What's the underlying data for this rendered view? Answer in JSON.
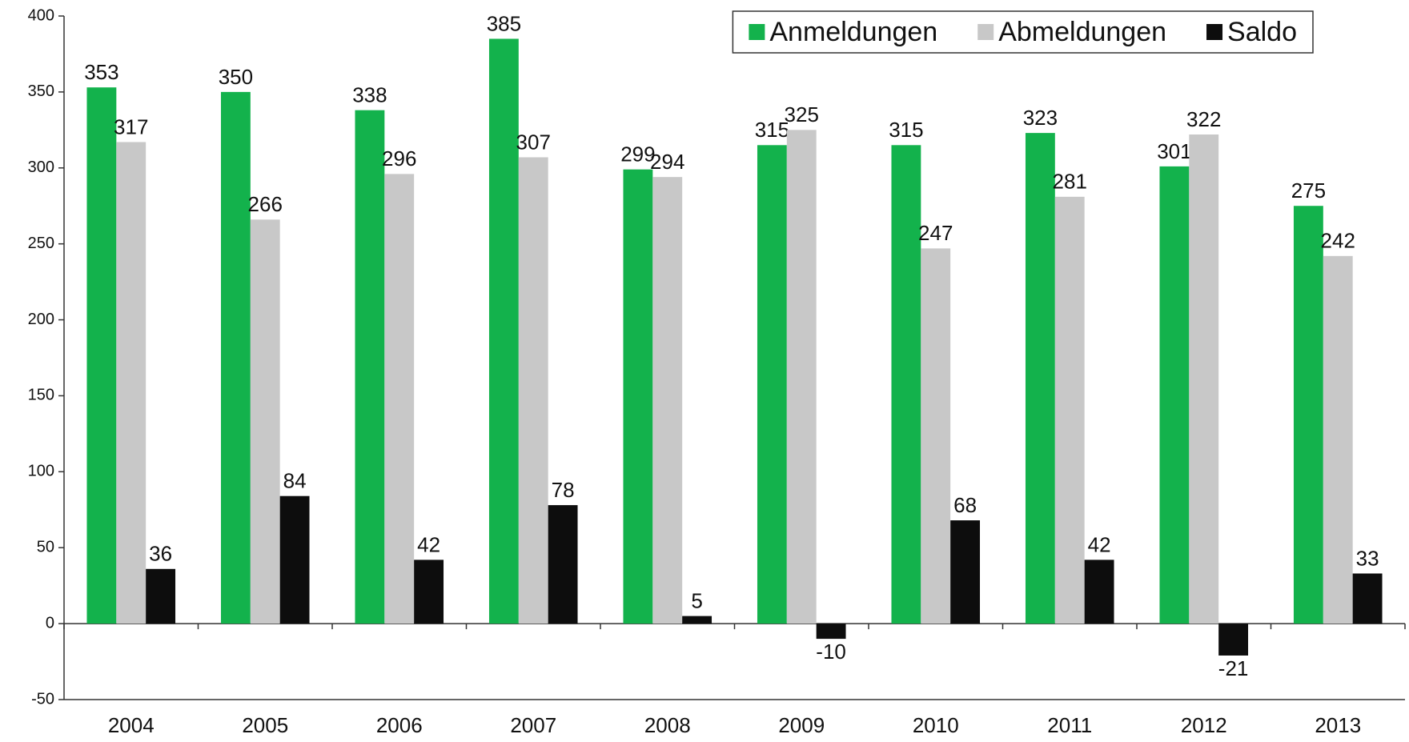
{
  "chart_data": {
    "type": "bar",
    "categories": [
      "2004",
      "2005",
      "2006",
      "2007",
      "2008",
      "2009",
      "2010",
      "2011",
      "2012",
      "2013"
    ],
    "series": [
      {
        "name": "Anmeldungen",
        "color": "#13b24c",
        "values": [
          353,
          350,
          338,
          385,
          299,
          315,
          315,
          323,
          301,
          275
        ]
      },
      {
        "name": "Abmeldungen",
        "color": "#c8c8c8",
        "values": [
          317,
          266,
          296,
          307,
          294,
          325,
          247,
          281,
          322,
          242
        ]
      },
      {
        "name": "Saldo",
        "color": "#0d0d0d",
        "values": [
          36,
          84,
          42,
          78,
          5,
          -10,
          68,
          42,
          -21,
          33
        ]
      }
    ],
    "ylim": [
      -50,
      400
    ],
    "yticks": [
      -50,
      0,
      50,
      100,
      150,
      200,
      250,
      300,
      350,
      400
    ],
    "grid": false,
    "legend": "top-right"
  }
}
